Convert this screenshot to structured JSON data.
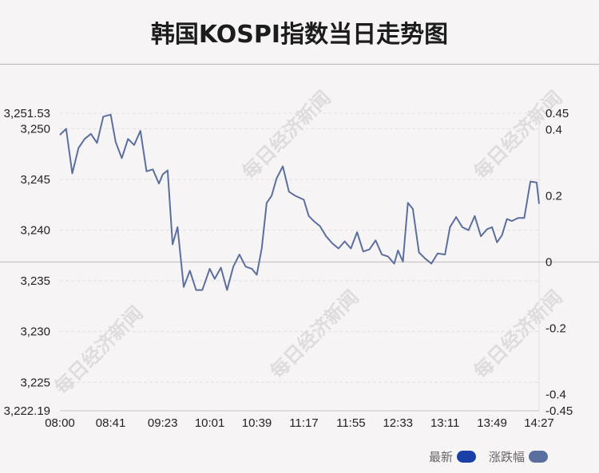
{
  "title": "韩国KOSPI指数当日走势图",
  "watermark": "每日经济新闻",
  "legend": [
    {
      "label": "最新",
      "color": "#1a3fa6"
    },
    {
      "label": "涨跌幅",
      "color": "#5b6f9e"
    }
  ],
  "colors": {
    "line": "#5b6f9e",
    "baseline": "#c8c4c6",
    "grid": "#e2dfe1",
    "background": "#f7f4f6"
  },
  "chart_data": {
    "type": "line",
    "title": "韩国KOSPI指数当日走势图",
    "xlabel": "",
    "ylabel": "",
    "x_tick_labels": [
      "08:00",
      "08:41",
      "09:23",
      "10:01",
      "10:39",
      "11:17",
      "11:55",
      "12:33",
      "13:11",
      "13:49",
      "14:27"
    ],
    "y_left": {
      "range": [
        3222.19,
        3251.53
      ],
      "tick_values": [
        3225,
        3230,
        3235,
        3240,
        3245,
        3250
      ],
      "tick_labels": [
        "3,222.19",
        "3,225",
        "3,230",
        "3,235",
        "3,240",
        "3,245",
        "3,250",
        "3,251.53"
      ]
    },
    "y_right": {
      "range": [
        -0.45,
        0.45
      ],
      "tick_labels": [
        "0.45",
        "0.4",
        "0.2",
        "0",
        "-0.2",
        "-0.4",
        "-0.45"
      ]
    },
    "baseline_value": 3236.86,
    "grid": true,
    "legend_position": "bottom-right",
    "series": [
      {
        "name": "最新",
        "x": [
          "08:00",
          "08:05",
          "08:10",
          "08:15",
          "08:20",
          "08:25",
          "08:30",
          "08:35",
          "08:41",
          "08:45",
          "08:50",
          "08:55",
          "09:00",
          "09:05",
          "09:10",
          "09:15",
          "09:20",
          "09:23",
          "09:27",
          "09:31",
          "09:35",
          "09:40",
          "09:45",
          "09:50",
          "09:55",
          "10:01",
          "10:05",
          "10:10",
          "10:15",
          "10:20",
          "10:25",
          "10:30",
          "10:35",
          "10:39",
          "10:43",
          "10:47",
          "10:51",
          "10:55",
          "11:00",
          "11:05",
          "11:10",
          "11:17",
          "11:21",
          "11:25",
          "11:30",
          "11:35",
          "11:40",
          "11:45",
          "11:50",
          "11:55",
          "12:00",
          "12:05",
          "12:10",
          "12:15",
          "12:20",
          "12:25",
          "12:30",
          "12:33",
          "12:37",
          "12:41",
          "12:45",
          "12:50",
          "12:55",
          "13:00",
          "13:05",
          "13:11",
          "13:15",
          "13:20",
          "13:25",
          "13:30",
          "13:35",
          "13:40",
          "13:45",
          "13:49",
          "13:53",
          "13:57",
          "14:01",
          "14:05",
          "14:10",
          "14:15",
          "14:20",
          "14:25",
          "14:27"
        ],
        "y": [
          3249.4,
          3250.0,
          3245.6,
          3248.1,
          3249.0,
          3249.5,
          3248.6,
          3251.2,
          3251.4,
          3248.7,
          3247.1,
          3249.0,
          3248.4,
          3249.8,
          3245.8,
          3246.0,
          3244.6,
          3245.5,
          3245.9,
          3238.6,
          3240.3,
          3234.4,
          3236.0,
          3234.1,
          3234.1,
          3236.2,
          3235.2,
          3236.3,
          3234.1,
          3236.4,
          3237.6,
          3236.4,
          3236.2,
          3235.6,
          3238.2,
          3242.7,
          3243.4,
          3245.1,
          3246.3,
          3243.8,
          3243.4,
          3243.0,
          3241.4,
          3240.9,
          3240.4,
          3239.4,
          3238.7,
          3238.2,
          3238.9,
          3238.2,
          3239.8,
          3237.9,
          3238.1,
          3239.0,
          3237.6,
          3237.4,
          3236.7,
          3238.0,
          3236.9,
          3242.7,
          3242.1,
          3237.8,
          3237.2,
          3236.7,
          3237.7,
          3237.6,
          3240.3,
          3241.3,
          3240.3,
          3240.0,
          3241.4,
          3239.4,
          3240.1,
          3240.3,
          3238.8,
          3239.5,
          3241.1,
          3240.9,
          3241.2,
          3241.2,
          3244.8,
          3244.7,
          3242.6
        ]
      }
    ]
  }
}
